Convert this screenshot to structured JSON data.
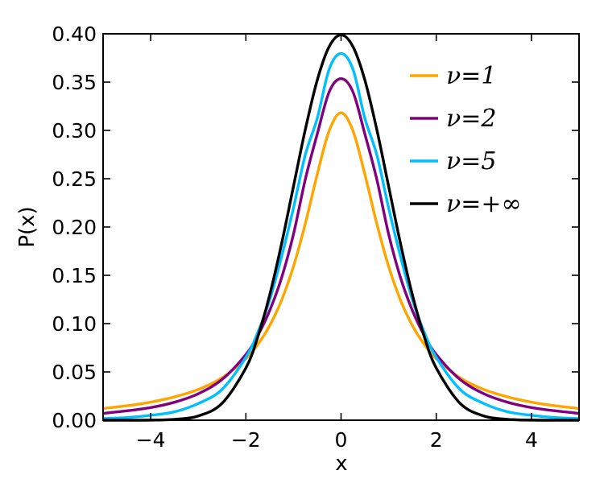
{
  "chart_data": {
    "type": "line",
    "title": "",
    "xlabel": "x",
    "ylabel": "P(x)",
    "xlim": [
      -5,
      5
    ],
    "ylim": [
      0.0,
      0.4
    ],
    "xticks": [
      -4,
      -2,
      0,
      2,
      4
    ],
    "xtick_labels": [
      "−4",
      "−2",
      "0",
      "2",
      "4"
    ],
    "yticks": [
      0.0,
      0.05,
      0.1,
      0.15,
      0.2,
      0.25,
      0.3,
      0.35,
      0.4
    ],
    "ytick_labels": [
      "0.00",
      "0.05",
      "0.10",
      "0.15",
      "0.20",
      "0.25",
      "0.30",
      "0.35",
      "0.40"
    ],
    "grid": false,
    "legend_position": "top-right",
    "x": [
      -5,
      -4.5,
      -4,
      -3.5,
      -3,
      -2.5,
      -2,
      -1.75,
      -1.5,
      -1.25,
      -1,
      -0.75,
      -0.5,
      -0.25,
      0,
      0.25,
      0.5,
      0.75,
      1,
      1.25,
      1.5,
      1.75,
      2,
      2.5,
      3,
      3.5,
      4,
      4.5,
      5
    ],
    "series": [
      {
        "name": "ν=1",
        "color": "#ffa500",
        "values": [
          0.0122,
          0.0149,
          0.0187,
          0.0241,
          0.0318,
          0.0439,
          0.0637,
          0.0784,
          0.0979,
          0.1242,
          0.1592,
          0.2037,
          0.2546,
          0.2996,
          0.3183,
          0.2996,
          0.2546,
          0.2037,
          0.1592,
          0.1242,
          0.0979,
          0.0784,
          0.0637,
          0.0439,
          0.0318,
          0.0241,
          0.0187,
          0.0149,
          0.0122
        ]
      },
      {
        "name": "ν=2",
        "color": "#800080",
        "values": [
          0.0071,
          0.0097,
          0.0131,
          0.0186,
          0.0274,
          0.0422,
          0.068,
          0.0877,
          0.1135,
          0.1474,
          0.1925,
          0.2496,
          0.2963,
          0.3398,
          0.3536,
          0.3398,
          0.2963,
          0.2496,
          0.1925,
          0.1474,
          0.1135,
          0.0877,
          0.068,
          0.0422,
          0.0274,
          0.0186,
          0.0131,
          0.0097,
          0.0071
        ]
      },
      {
        "name": "ν=5",
        "color": "#00bfff",
        "values": [
          0.0018,
          0.0028,
          0.0051,
          0.0087,
          0.0173,
          0.0319,
          0.0651,
          0.0908,
          0.1245,
          0.1693,
          0.2197,
          0.275,
          0.3125,
          0.3633,
          0.3796,
          0.3633,
          0.3125,
          0.275,
          0.2197,
          0.1693,
          0.1245,
          0.0908,
          0.0651,
          0.0319,
          0.0173,
          0.0087,
          0.0051,
          0.0028,
          0.0018
        ]
      },
      {
        "name": "ν=+∞",
        "color": "#000000",
        "values": [
          0.0,
          0.0,
          0.0001,
          0.0009,
          0.0044,
          0.0175,
          0.054,
          0.0863,
          0.1295,
          0.1826,
          0.242,
          0.3011,
          0.3521,
          0.3867,
          0.3989,
          0.3867,
          0.3521,
          0.3011,
          0.242,
          0.1826,
          0.1295,
          0.0863,
          0.054,
          0.0175,
          0.0044,
          0.0009,
          0.0001,
          0.0,
          0.0
        ]
      }
    ]
  }
}
